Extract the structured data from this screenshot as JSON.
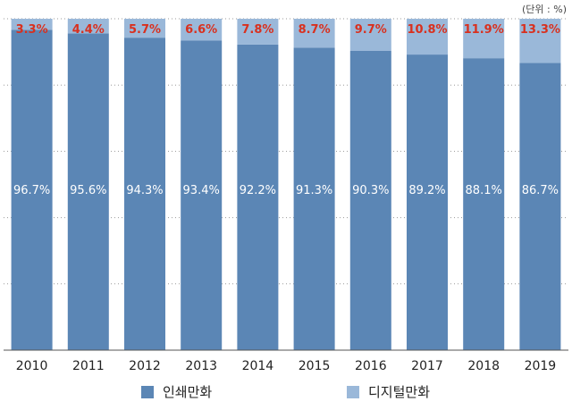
{
  "chart_data": {
    "type": "bar",
    "stacked": true,
    "unit_label": "(단위 : %)",
    "categories": [
      "2010",
      "2011",
      "2012",
      "2013",
      "2014",
      "2015",
      "2016",
      "2017",
      "2018",
      "2019"
    ],
    "series": [
      {
        "name": "인쇄만화",
        "values": [
          96.7,
          95.6,
          94.3,
          93.4,
          92.2,
          91.3,
          90.3,
          89.2,
          88.1,
          86.7
        ],
        "color": "#5b86b5",
        "label_color": "#ffffff"
      },
      {
        "name": "디지털만화",
        "values": [
          3.3,
          4.4,
          5.7,
          6.6,
          7.8,
          8.7,
          9.7,
          10.8,
          11.9,
          13.3
        ],
        "color": "#9ab8d9",
        "label_color": "#d9301e"
      }
    ],
    "ylim": [
      0,
      100
    ],
    "grid": true,
    "legend_position": "bottom"
  }
}
